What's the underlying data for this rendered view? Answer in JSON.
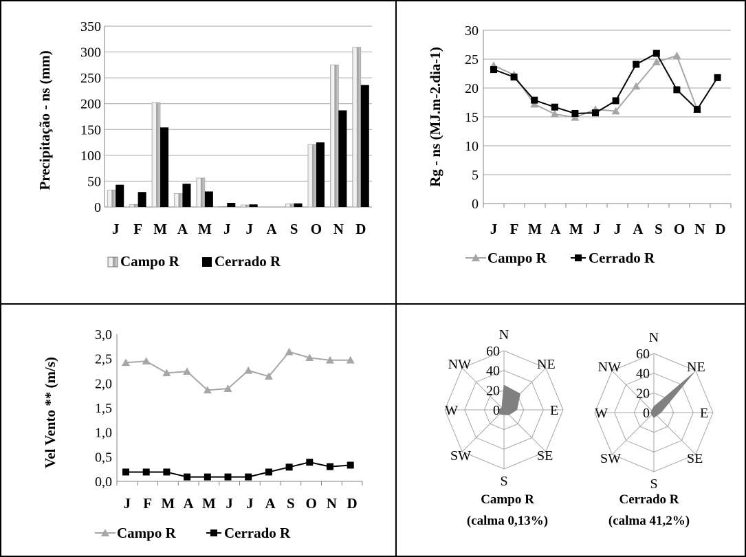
{
  "months": [
    "J",
    "F",
    "M",
    "A",
    "M",
    "J",
    "J",
    "A",
    "S",
    "O",
    "N",
    "D"
  ],
  "chart_data": [
    {
      "type": "bar",
      "panel": "precipitation",
      "ylabel": "Precipitação - ns (mm)",
      "ylim": [
        0,
        350
      ],
      "yticks": [
        0,
        50,
        100,
        150,
        200,
        250,
        300,
        350
      ],
      "series": [
        {
          "name": "Campo R",
          "values": [
            33,
            5,
            202,
            26,
            56,
            1,
            4,
            0,
            6,
            121,
            275,
            309
          ],
          "color": "#bdbdbd"
        },
        {
          "name": "Cerrado R",
          "values": [
            43,
            29,
            154,
            45,
            30,
            8,
            5,
            0,
            7,
            125,
            187,
            236
          ],
          "color": "#000000"
        }
      ],
      "legend_position": "bottom"
    },
    {
      "type": "line",
      "panel": "radiation",
      "ylabel": "Rg - ns (MJ.m-2.dia-1)",
      "ylim": [
        0,
        30
      ],
      "yticks": [
        0,
        5,
        10,
        15,
        20,
        25,
        30
      ],
      "grid": true,
      "series": [
        {
          "name": "Campo R",
          "values": [
            23.9,
            22.3,
            17.2,
            15.5,
            14.9,
            16.3,
            16.0,
            20.3,
            24.5,
            25.6,
            16.3,
            null
          ],
          "color": "#a6a6a6",
          "marker": "triangle"
        },
        {
          "name": "Cerrado R",
          "values": [
            23.2,
            21.9,
            17.9,
            16.7,
            15.6,
            15.7,
            17.8,
            24.1,
            26.0,
            19.7,
            16.3,
            21.8
          ],
          "color": "#000000",
          "marker": "square"
        }
      ],
      "legend_position": "bottom"
    },
    {
      "type": "line",
      "panel": "wind",
      "ylabel": "Vel Vento ** (m/s)",
      "ylim": [
        0,
        3
      ],
      "yticks": [
        "0,0",
        "0,5",
        "1,0",
        "1,5",
        "2,0",
        "2,5",
        "3,0"
      ],
      "series": [
        {
          "name": "Campo R",
          "values": [
            2.42,
            2.45,
            2.21,
            2.24,
            1.86,
            1.89,
            2.26,
            2.14,
            2.64,
            2.52,
            2.47,
            2.47
          ],
          "color": "#a6a6a6",
          "marker": "triangle"
        },
        {
          "name": "Cerrado R",
          "values": [
            0.19,
            0.19,
            0.19,
            0.09,
            0.09,
            0.09,
            0.09,
            0.19,
            0.29,
            0.39,
            0.3,
            0.33
          ],
          "color": "#000000",
          "marker": "square"
        }
      ],
      "legend_position": "bottom"
    },
    {
      "type": "radar",
      "panel": "wind-direction",
      "directions": [
        "N",
        "NE",
        "E",
        "SE",
        "S",
        "SW",
        "W",
        "NW"
      ],
      "rlim": [
        0,
        60
      ],
      "rticks": [
        0,
        20,
        40,
        60
      ],
      "charts": [
        {
          "name": "Campo R",
          "caption": "(calma 0,13%)",
          "values": [
            25,
            23,
            13,
            7,
            5,
            6,
            5,
            3
          ],
          "color": "#808080"
        },
        {
          "name": "Cerrado R",
          "caption": "(calma 41,2%)",
          "values": [
            6,
            57,
            7,
            4,
            5,
            3,
            3,
            3
          ],
          "color": "#808080"
        }
      ]
    }
  ]
}
